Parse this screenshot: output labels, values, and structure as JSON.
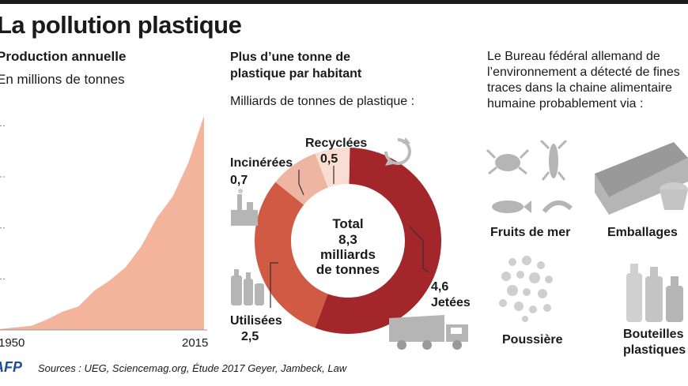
{
  "title": "La pollution plastique",
  "panel1": {
    "title": "Production annuelle",
    "unit": "En millions de tonnes",
    "x_start_label": "1950",
    "x_end_label": "2015"
  },
  "panel2": {
    "title": "Plus d’une tonne de plastique par habitant",
    "unit": "Milliards de tonnes de plastique :",
    "center_total": "Total",
    "center_value": "8,3",
    "center_unit1": "milliards",
    "center_unit2": "de tonnes",
    "segments": [
      {
        "name": "Jetées",
        "value_label": "4,6"
      },
      {
        "name": "Utilisées",
        "value_label": "2,5"
      },
      {
        "name": "Incinérées",
        "value_label": "0,7"
      },
      {
        "name": "Recyclées",
        "value_label": "0,5"
      }
    ]
  },
  "panel3": {
    "text": "Le Bureau fédéral allemand de l’environnement a détecté de fines traces dans la chaine alimentaire humaine probablement via :",
    "categories": [
      "Fruits de mer",
      "Emballages",
      "Poussière",
      "Bouteilles plastiques"
    ]
  },
  "source": {
    "logo": "AFP",
    "text": "Sources : UEG, Sciencemag.org, Étude 2017 Geyer, Jambeck, Law"
  },
  "colors": {
    "area": "#f4b49c",
    "jetees": "#a3262b",
    "utilisees": "#d15a45",
    "incinerees": "#eeb5a2",
    "recyclees": "#f9ddd2",
    "icon_gray": "#b5b5b5"
  },
  "chart_data": [
    {
      "type": "area",
      "title": "Production annuelle",
      "ylabel": "En millions de tonnes",
      "x": [
        1950,
        1955,
        1960,
        1965,
        1970,
        1975,
        1980,
        1985,
        1990,
        1995,
        2000,
        2005,
        2010,
        2015
      ],
      "series": [
        {
          "values": [
            2,
            5,
            8,
            20,
            35,
            45,
            75,
            95,
            120,
            160,
            215,
            255,
            320,
            410
          ]
        }
      ],
      "xlim": [
        1950,
        2015
      ],
      "ylim": [
        0,
        420
      ],
      "grid": true
    },
    {
      "type": "pie",
      "title": "Plus d’une tonne de plastique par habitant",
      "unit": "Milliards de tonnes de plastique :",
      "categories": [
        "Jetées",
        "Utilisées",
        "Incinérées",
        "Recyclées"
      ],
      "values": [
        4.6,
        2.5,
        0.7,
        0.5
      ],
      "total": 8.3
    }
  ]
}
